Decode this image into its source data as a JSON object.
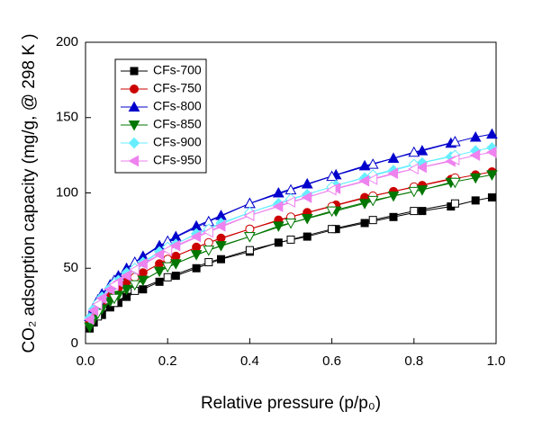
{
  "chart_data": {
    "type": "line",
    "xlabel": "Relative pressure (p/p₀)",
    "ylabel": "CO₂ adsorption capacity (mg/g, @ 298 K )",
    "xlim": [
      0,
      1
    ],
    "ylim": [
      0,
      200
    ],
    "xticks": [
      {
        "value": 0,
        "label": "0.0"
      },
      0.2,
      0.4,
      0.6,
      0.8,
      {
        "value": 1,
        "label": "1.0"
      }
    ],
    "yticks": [
      0,
      50,
      100,
      150,
      200
    ],
    "legend": "upper left",
    "x": [
      0.01,
      0.02,
      0.04,
      0.06,
      0.08,
      0.1,
      0.14,
      0.18,
      0.22,
      0.27,
      0.33,
      0.4,
      0.47,
      0.54,
      0.61,
      0.68,
      0.75,
      0.82,
      0.89,
      0.95,
      0.99
    ],
    "desorption_x": [
      0.03,
      0.07,
      0.12,
      0.2,
      0.3,
      0.4,
      0.5,
      0.6,
      0.7,
      0.8,
      0.9
    ],
    "series": [
      {
        "name": "CFs-700",
        "color": "#000000",
        "marker": "square",
        "values": [
          10,
          14,
          19,
          24,
          27,
          31,
          36,
          41,
          45,
          50,
          56,
          61,
          67,
          71,
          76,
          80,
          84,
          88,
          91,
          95,
          97
        ],
        "desorption_values": [
          18,
          27,
          35,
          44,
          54,
          62,
          69,
          76,
          82,
          88,
          93
        ]
      },
      {
        "name": "CFs-750",
        "color": "#cc0000",
        "marker": "circle",
        "values": [
          14,
          20,
          27,
          32,
          37,
          41,
          47,
          53,
          58,
          64,
          70,
          76,
          82,
          87,
          92,
          97,
          101,
          105,
          109,
          112,
          114
        ],
        "desorption_values": [
          24,
          35,
          44,
          56,
          67,
          76,
          84,
          91,
          98,
          104,
          110
        ]
      },
      {
        "name": "CFs-800",
        "color": "#0000cc",
        "marker": "triangle-up",
        "values": [
          18,
          24,
          33,
          39,
          45,
          50,
          58,
          65,
          71,
          78,
          85,
          93,
          100,
          106,
          112,
          118,
          123,
          128,
          133,
          137,
          139
        ],
        "desorption_values": [
          29,
          42,
          54,
          68,
          81,
          93,
          102,
          111,
          119,
          127,
          134
        ]
      },
      {
        "name": "CFs-850",
        "color": "#007700",
        "marker": "triangle-down",
        "values": [
          11,
          16,
          23,
          28,
          32,
          36,
          42,
          48,
          53,
          59,
          65,
          71,
          78,
          83,
          88,
          93,
          98,
          102,
          107,
          110,
          112
        ],
        "desorption_values": [
          20,
          30,
          39,
          51,
          62,
          71,
          80,
          88,
          95,
          101,
          107
        ]
      },
      {
        "name": "CFs-900",
        "color": "#66eeff",
        "marker": "diamond",
        "values": [
          17,
          23,
          31,
          37,
          42,
          47,
          54,
          61,
          66,
          73,
          80,
          87,
          93,
          99,
          105,
          110,
          115,
          120,
          124,
          128,
          130
        ],
        "desorption_values": [
          27,
          40,
          50,
          64,
          76,
          87,
          96,
          104,
          112,
          119,
          125
        ]
      },
      {
        "name": "CFs-950",
        "color": "#ee82ee",
        "marker": "triangle-left",
        "values": [
          16,
          22,
          30,
          36,
          41,
          45,
          53,
          59,
          65,
          71,
          78,
          85,
          91,
          97,
          103,
          108,
          113,
          117,
          121,
          125,
          127
        ],
        "desorption_values": [
          26,
          39,
          49,
          62,
          74,
          85,
          94,
          102,
          109,
          116,
          122
        ]
      }
    ]
  }
}
